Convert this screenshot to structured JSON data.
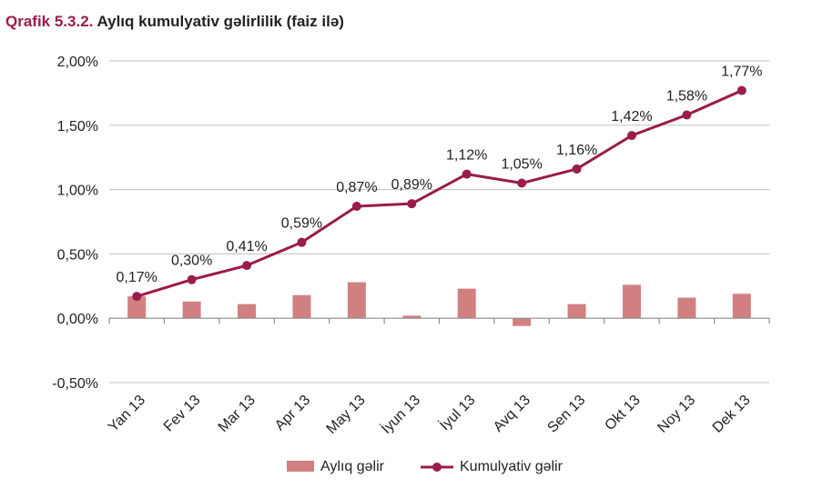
{
  "header": {
    "figure_number": "Qrafik 5.3.2.",
    "title": "Aylıq kumulyativ gəlirlilik (faiz ilə)"
  },
  "chart_data": {
    "type": "bar",
    "title": "Aylıq kumulyativ gəlirlilik (faiz ilə)",
    "categories": [
      "Yan 13",
      "Fev 13",
      "Mar 13",
      "Apr 13",
      "May 13",
      "İyun 13",
      "İyul 13",
      "Avq 13",
      "Sen 13",
      "Okt 13",
      "Noy 13",
      "Dek 13"
    ],
    "ylim": [
      -0.5,
      2.0
    ],
    "yticks": [
      -0.5,
      0.0,
      0.5,
      1.0,
      1.5,
      2.0
    ],
    "ytick_labels": [
      "-0,50%",
      "0,00%",
      "0,50%",
      "1,00%",
      "1,50%",
      "2,00%"
    ],
    "grid": true,
    "legend_position": "bottom",
    "series": [
      {
        "name": "Aylıq gəlir",
        "type": "bar",
        "color": "#d08080",
        "values": [
          0.17,
          0.13,
          0.11,
          0.18,
          0.28,
          0.02,
          0.23,
          -0.06,
          0.11,
          0.26,
          0.16,
          0.19
        ]
      },
      {
        "name": "Kumulyativ gəlir",
        "type": "line",
        "color": "#9b1b4b",
        "values": [
          0.17,
          0.3,
          0.41,
          0.59,
          0.87,
          0.89,
          1.12,
          1.05,
          1.16,
          1.42,
          1.58,
          1.77
        ],
        "data_labels": [
          "0,17%",
          "0,30%",
          "0,41%",
          "0,59%",
          "0,87%",
          "0,89%",
          "1,12%",
          "1,05%",
          "1,16%",
          "1,42%",
          "1,58%",
          "1,77%"
        ]
      }
    ]
  }
}
